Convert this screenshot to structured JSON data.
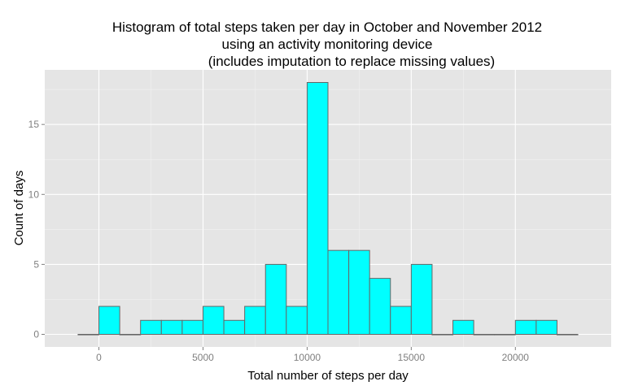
{
  "chart_data": {
    "type": "bar",
    "title": [
      "Histogram of total steps taken per day in October and November 2012",
      "using an activity monitoring device",
      "(includes imputation to replace missing values)"
    ],
    "xlabel": "Total number of steps per day",
    "ylabel": "Count of days",
    "bin_width": 1000,
    "x_range": [
      -2600,
      24600
    ],
    "y_range": [
      -0.9,
      18.9
    ],
    "x_ticks": [
      0,
      5000,
      10000,
      15000,
      20000
    ],
    "x_tick_labels": [
      "0",
      "5000",
      "10000",
      "15000",
      "20000"
    ],
    "y_ticks": [
      0,
      5,
      10,
      15
    ],
    "y_tick_labels": [
      "0",
      "5",
      "10",
      "15"
    ],
    "bins": [
      {
        "x0": -1000,
        "x1": 0,
        "count": 0
      },
      {
        "x0": 0,
        "x1": 1000,
        "count": 2
      },
      {
        "x0": 1000,
        "x1": 2000,
        "count": 0
      },
      {
        "x0": 2000,
        "x1": 3000,
        "count": 1
      },
      {
        "x0": 3000,
        "x1": 4000,
        "count": 1
      },
      {
        "x0": 4000,
        "x1": 5000,
        "count": 1
      },
      {
        "x0": 5000,
        "x1": 6000,
        "count": 2
      },
      {
        "x0": 6000,
        "x1": 7000,
        "count": 1
      },
      {
        "x0": 7000,
        "x1": 8000,
        "count": 2
      },
      {
        "x0": 8000,
        "x1": 9000,
        "count": 5
      },
      {
        "x0": 9000,
        "x1": 10000,
        "count": 2
      },
      {
        "x0": 10000,
        "x1": 11000,
        "count": 18
      },
      {
        "x0": 11000,
        "x1": 12000,
        "count": 6
      },
      {
        "x0": 12000,
        "x1": 13000,
        "count": 6
      },
      {
        "x0": 13000,
        "x1": 14000,
        "count": 4
      },
      {
        "x0": 14000,
        "x1": 15000,
        "count": 2
      },
      {
        "x0": 15000,
        "x1": 16000,
        "count": 5
      },
      {
        "x0": 16000,
        "x1": 17000,
        "count": 0
      },
      {
        "x0": 17000,
        "x1": 18000,
        "count": 1
      },
      {
        "x0": 18000,
        "x1": 19000,
        "count": 0
      },
      {
        "x0": 19000,
        "x1": 20000,
        "count": 0
      },
      {
        "x0": 20000,
        "x1": 21000,
        "count": 1
      },
      {
        "x0": 21000,
        "x1": 22000,
        "count": 1
      },
      {
        "x0": 22000,
        "x1": 23000,
        "count": 0
      }
    ],
    "grid": true,
    "legend": "none",
    "colors": {
      "bar_fill": "#00ffff",
      "bar_outline": "#666666",
      "panel_background": "#e5e5e5"
    }
  }
}
